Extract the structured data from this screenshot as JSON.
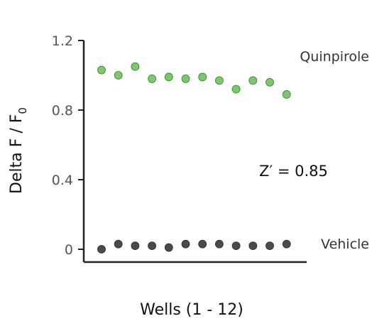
{
  "chart_data": {
    "type": "scatter",
    "xlabel": "Wells (1 - 12)",
    "ylabel": {
      "main": "Delta F / F",
      "subscript": "0"
    },
    "ylim": [
      0,
      1.2
    ],
    "yticks": [
      {
        "value": 0,
        "label": "0"
      },
      {
        "value": 0.4,
        "label": "0.4"
      },
      {
        "value": 0.8,
        "label": "0.8"
      },
      {
        "value": 1.2,
        "label": "1.2"
      }
    ],
    "x": [
      1,
      2,
      3,
      4,
      5,
      6,
      7,
      8,
      9,
      10,
      11,
      12
    ],
    "series": [
      {
        "name": "Quinpirole",
        "color": "#7cc96c",
        "values": [
          1.03,
          1.0,
          1.05,
          0.98,
          0.99,
          0.98,
          0.99,
          0.97,
          0.92,
          0.97,
          0.96,
          0.89
        ]
      },
      {
        "name": "Vehicle",
        "color": "#4a4a4a",
        "values": [
          0.0,
          0.03,
          0.02,
          0.02,
          0.01,
          0.03,
          0.03,
          0.03,
          0.02,
          0.02,
          0.02,
          0.03
        ]
      }
    ],
    "annotations": [
      {
        "text": "Z′ = 0.85"
      }
    ],
    "grid": false
  }
}
